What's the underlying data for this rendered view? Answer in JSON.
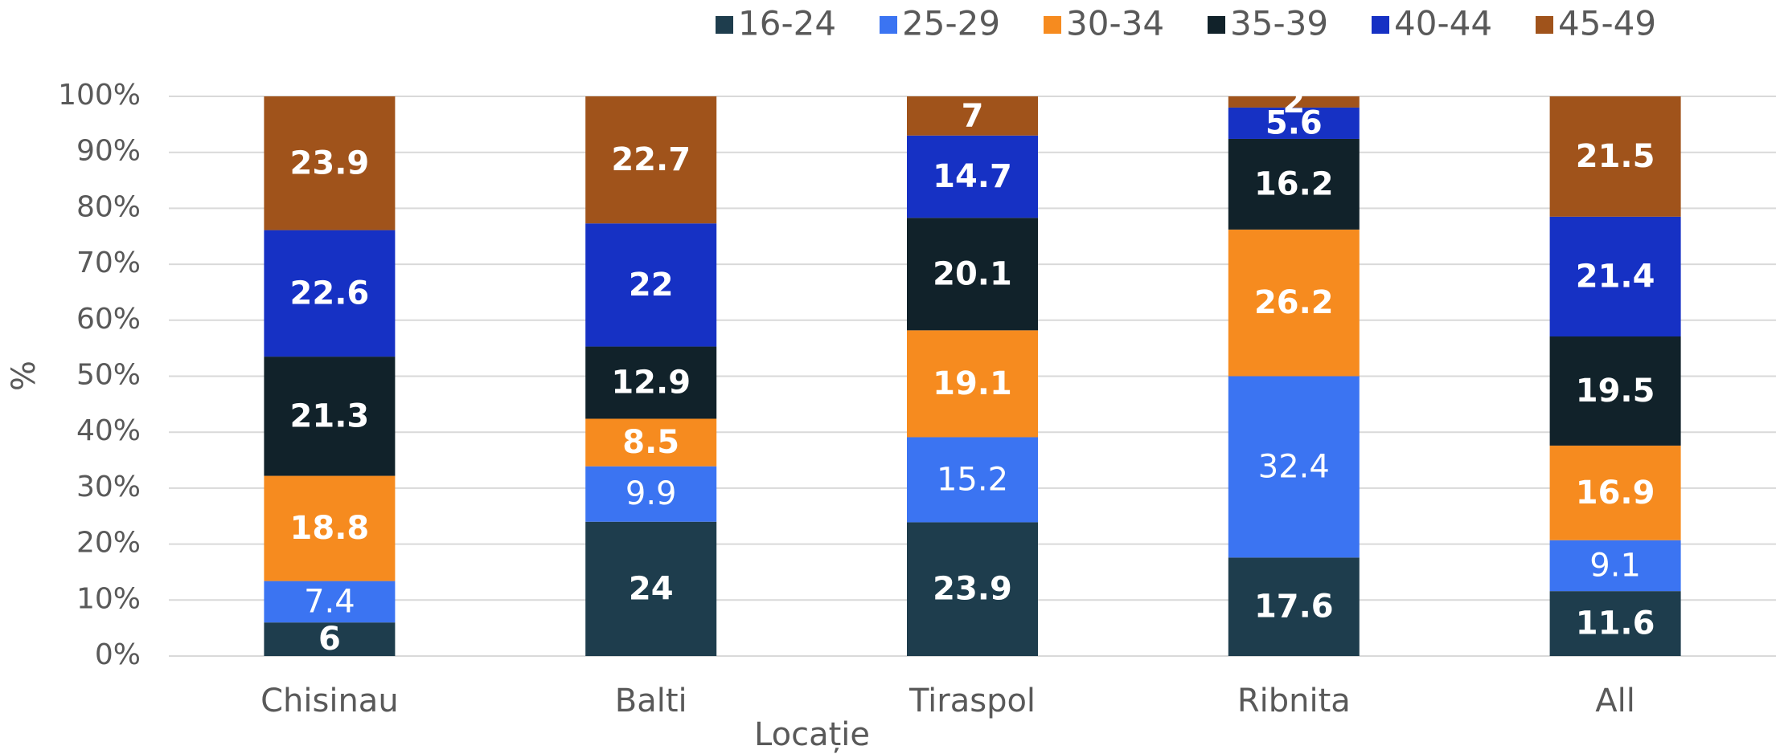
{
  "chart_data": {
    "type": "stacked_bar",
    "x_label": "Locație",
    "y_label": "%",
    "categories": [
      "Chisinau",
      "Balti",
      "Tiraspol",
      "Ribnita",
      "All"
    ],
    "series": [
      {
        "name": "16-24",
        "color": "#1e3d4d",
        "values": [
          6,
          24,
          23.9,
          17.6,
          11.6
        ]
      },
      {
        "name": "25-29",
        "color": "#3b74f2",
        "values": [
          7.4,
          9.9,
          15.2,
          32.4,
          9.1
        ]
      },
      {
        "name": "30-34",
        "color": "#f68b1f",
        "values": [
          18.8,
          8.5,
          19.1,
          26.2,
          16.9
        ]
      },
      {
        "name": "35-39",
        "color": "#11222a",
        "values": [
          21.3,
          12.9,
          20.1,
          16.2,
          19.5
        ]
      },
      {
        "name": "40-44",
        "color": "#1631c4",
        "values": [
          22.6,
          22,
          14.7,
          5.6,
          21.4
        ]
      },
      {
        "name": "45-49",
        "color": "#a0531b",
        "values": [
          23.9,
          22.7,
          7,
          2,
          21.5
        ]
      }
    ],
    "ylim": [
      0,
      100
    ],
    "yticks": [
      {
        "value": 0,
        "label": "0%"
      },
      {
        "value": 10,
        "label": "10%"
      },
      {
        "value": 20,
        "label": "20%"
      },
      {
        "value": 30,
        "label": "30%"
      },
      {
        "value": 40,
        "label": "40%"
      },
      {
        "value": 50,
        "label": "50%"
      },
      {
        "value": 60,
        "label": "60%"
      },
      {
        "value": 70,
        "label": "70%"
      },
      {
        "value": 80,
        "label": "80%"
      },
      {
        "value": 90,
        "label": "90%"
      },
      {
        "value": 100,
        "label": "100%"
      }
    ],
    "grid": true,
    "legend": "top"
  }
}
